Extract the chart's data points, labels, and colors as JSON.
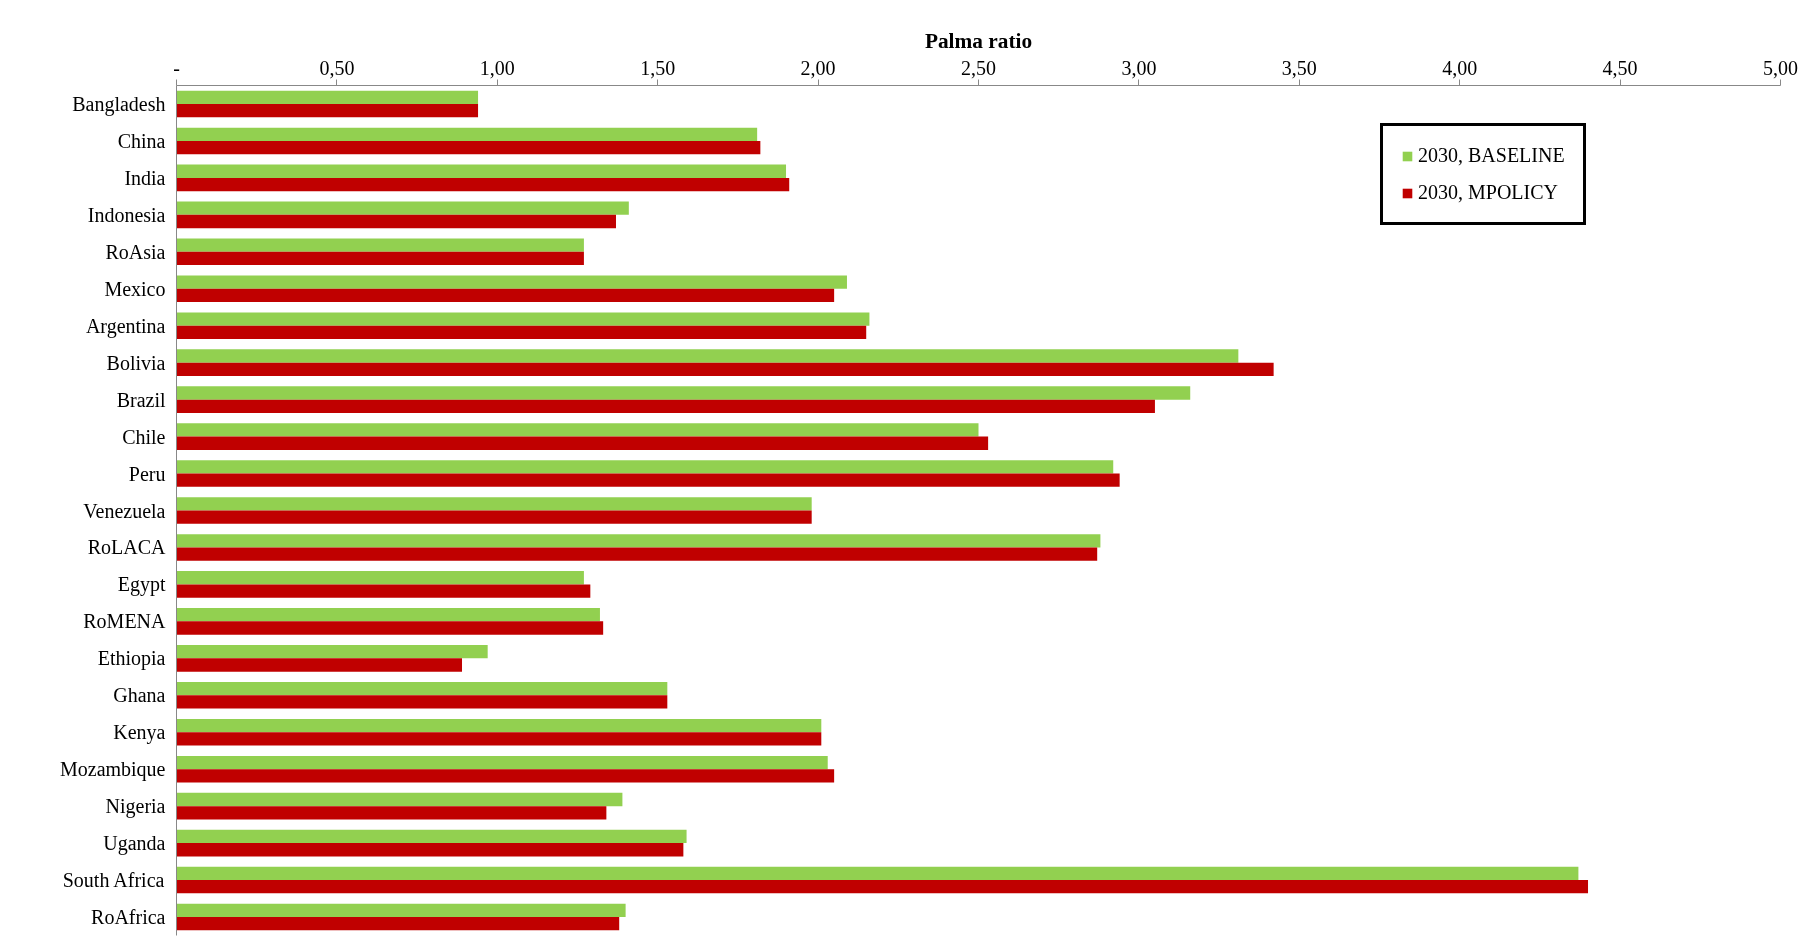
{
  "chart_data": {
    "type": "bar",
    "orientation": "horizontal",
    "xlabel": "Palma ratio",
    "categories": [
      "Bangladesh",
      "China",
      "India",
      "Indonesia",
      "RoAsia",
      "Mexico",
      "Argentina",
      "Bolivia",
      "Brazil",
      "Chile",
      "Peru",
      "Venezuela",
      "RoLACA",
      "Egypt",
      "RoMENA",
      "Ethiopia",
      "Ghana",
      "Kenya",
      "Mozambique",
      "Nigeria",
      "Uganda",
      "South Africa",
      "RoAfrica"
    ],
    "series": [
      {
        "name": "2030, BASELINE",
        "color": "#92d050",
        "values": [
          0.94,
          1.81,
          1.9,
          1.41,
          1.27,
          2.09,
          2.16,
          3.31,
          3.16,
          2.5,
          2.92,
          1.98,
          2.88,
          1.27,
          1.32,
          0.97,
          1.53,
          2.01,
          2.03,
          1.39,
          1.59,
          4.37,
          1.4
        ]
      },
      {
        "name": "2030, MPOLICY",
        "color": "#c00000",
        "values": [
          0.94,
          1.82,
          1.91,
          1.37,
          1.27,
          2.05,
          2.15,
          3.42,
          3.05,
          2.53,
          2.94,
          1.98,
          2.87,
          1.29,
          1.33,
          0.89,
          1.53,
          2.01,
          2.05,
          1.34,
          1.58,
          4.4,
          1.38
        ]
      }
    ],
    "xlim": [
      0,
      5
    ],
    "xticks": [
      {
        "value": 0,
        "label": "-"
      },
      {
        "value": 0.5,
        "label": "0,50"
      },
      {
        "value": 1,
        "label": "1,00"
      },
      {
        "value": 1.5,
        "label": "1,50"
      },
      {
        "value": 2,
        "label": "2,00"
      },
      {
        "value": 2.5,
        "label": "2,50"
      },
      {
        "value": 3,
        "label": "3,00"
      },
      {
        "value": 3.5,
        "label": "3,50"
      },
      {
        "value": 4,
        "label": "4,00"
      },
      {
        "value": 4.5,
        "label": "4,50"
      },
      {
        "value": 5,
        "label": "5,00"
      }
    ],
    "grid": false,
    "legend": "top right"
  }
}
